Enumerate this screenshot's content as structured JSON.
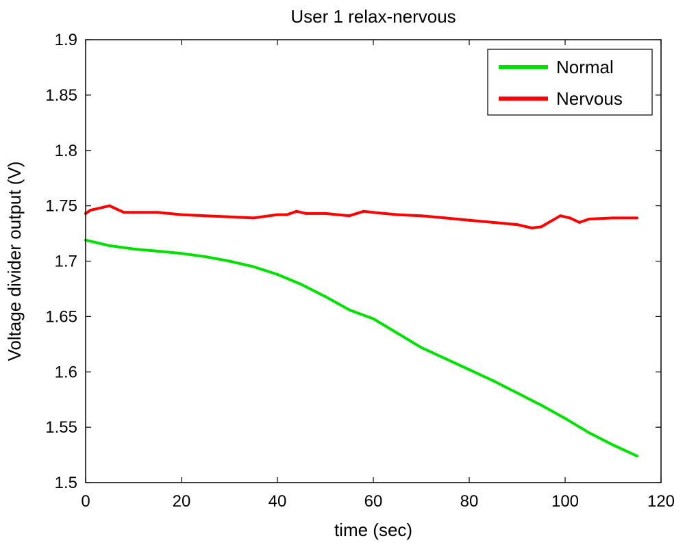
{
  "chart_data": {
    "type": "line",
    "title": "User 1 relax-nervous",
    "xlabel": "time (sec)",
    "ylabel": "Voltage divider output (V)",
    "xlim": [
      0,
      120
    ],
    "ylim": [
      1.5,
      1.9
    ],
    "xticks": [
      0,
      20,
      40,
      60,
      80,
      100,
      120
    ],
    "xtick_labels": [
      "0",
      "20",
      "40",
      "60",
      "80",
      "100",
      "120"
    ],
    "yticks": [
      1.5,
      1.55,
      1.6,
      1.65,
      1.7,
      1.75,
      1.8,
      1.85,
      1.9
    ],
    "ytick_labels": [
      "1.5",
      "1.55",
      "1.6",
      "1.65",
      "1.7",
      "1.75",
      "1.8",
      "1.85",
      "1.9"
    ],
    "grid": false,
    "legend_position": "top-right",
    "series": [
      {
        "name": "Normal",
        "color": "#00e000",
        "x": [
          0,
          2,
          5,
          10,
          15,
          20,
          25,
          30,
          35,
          40,
          45,
          50,
          55,
          60,
          65,
          70,
          75,
          80,
          85,
          90,
          95,
          100,
          105,
          110,
          115
        ],
        "y": [
          1.719,
          1.717,
          1.714,
          1.711,
          1.709,
          1.707,
          1.704,
          1.7,
          1.695,
          1.688,
          1.679,
          1.668,
          1.656,
          1.648,
          1.635,
          1.622,
          1.612,
          1.602,
          1.592,
          1.581,
          1.57,
          1.558,
          1.545,
          1.534,
          1.524
        ]
      },
      {
        "name": "Nervous",
        "color": "#ff0000",
        "x": [
          0,
          1,
          3,
          5,
          6,
          8,
          10,
          15,
          20,
          25,
          30,
          35,
          40,
          42,
          44,
          46,
          50,
          55,
          58,
          60,
          65,
          70,
          75,
          80,
          85,
          90,
          93,
          95,
          97,
          99,
          101,
          103,
          105,
          110,
          115
        ],
        "y": [
          1.743,
          1.746,
          1.748,
          1.75,
          1.748,
          1.744,
          1.744,
          1.744,
          1.742,
          1.741,
          1.74,
          1.739,
          1.742,
          1.742,
          1.745,
          1.743,
          1.743,
          1.741,
          1.745,
          1.744,
          1.742,
          1.741,
          1.739,
          1.737,
          1.735,
          1.733,
          1.73,
          1.731,
          1.736,
          1.741,
          1.739,
          1.735,
          1.738,
          1.739,
          1.739
        ]
      }
    ]
  }
}
